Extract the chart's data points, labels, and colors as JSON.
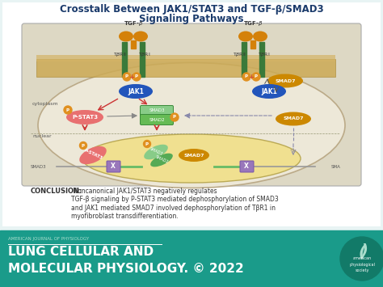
{
  "title_line1": "Crosstalk Between JAK1/STAT3 and TGF-β/SMAD3",
  "title_line2": "Signaling Pathways",
  "title_color": "#1a3a6b",
  "title_fontsize": 8.5,
  "slide_bg": "#e8f4f4",
  "diagram_bg": "#ddd8c4",
  "diagram_border": "#bbbbbb",
  "conclusion_bold": "CONCLUSION:",
  "conclusion_text": " Noncanonical JAK1/STAT3 negatively regulates\nTGF-β signaling by P-STAT3 mediated dephosphorylation of SMAD3\nand JAK1 mediated SMAD7 involved dephosphorylation of TβR1 in\nmyofibroblast transdifferentiation.",
  "footer_bg": "#1a9b8a",
  "footer_small": "AMERICAN JOURNAL OF PHYSIOLOGY",
  "footer_big_line1": "LUNG CELLULAR AND",
  "footer_big_line2": "MOLECULAR PHYSIOLOGY.",
  "footer_year": " © 2022",
  "footer_text_color": "#ffffff",
  "footer_small_color": "#aaddcc",
  "cell_bg": "#ede8d8",
  "nucleus_bg": "#f0e090",
  "membrane_color": "#c8a055",
  "receptor_color": "#3a7a3a",
  "tgfb_color": "#d4810a",
  "jak1_color": "#2255bb",
  "pstat3_color": "#e87070",
  "smad3_color": "#55aa55",
  "smad7_color": "#cc8800",
  "p_color": "#e09020",
  "arrow_color": "#cc3333",
  "dashed_color": "#8888aa",
  "inhibit_color": "#888888",
  "purple_color": "#9977bb",
  "gene_gray": "#999999",
  "gene_green": "#66bb66",
  "text_dark": "#333333",
  "text_medium": "#555555"
}
